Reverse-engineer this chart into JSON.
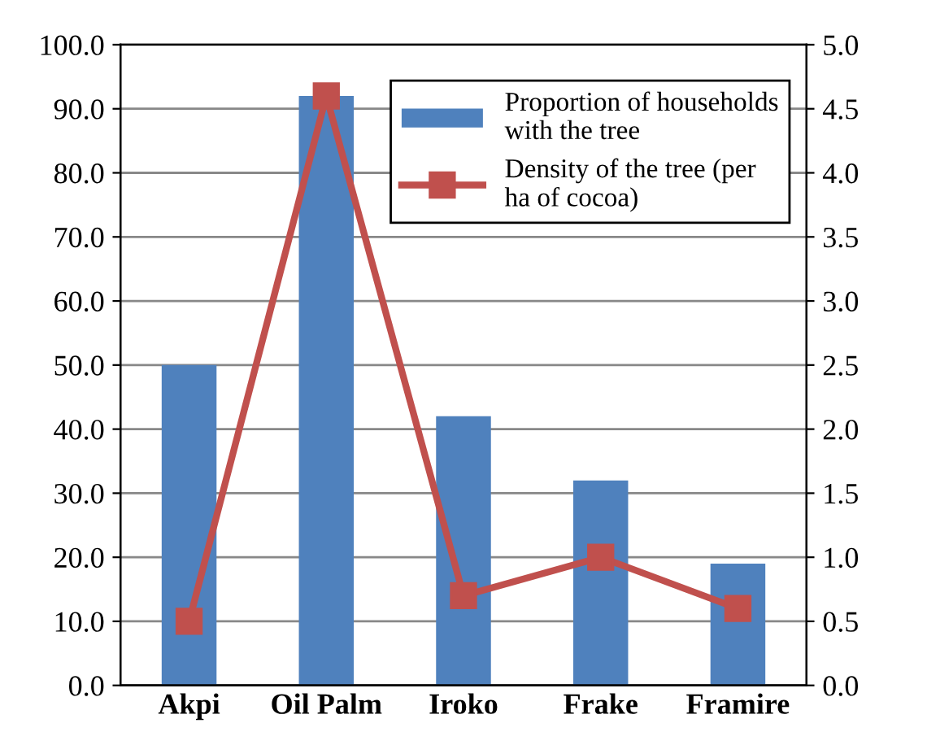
{
  "chart_data": {
    "type": "bar",
    "categories": [
      "Akpi",
      "Oil Palm",
      "Iroko",
      "Frake",
      "Framire"
    ],
    "series": [
      {
        "name": "Proportion of households with the tree",
        "color": "#4f81bd",
        "values": [
          50,
          92,
          42,
          32,
          19
        ]
      },
      {
        "name": "Density of the tree (per ha of cocoa)",
        "type": "line",
        "axis": "y2",
        "color": "#c0504d",
        "marker": "square",
        "values": [
          0.5,
          4.6,
          0.7,
          1.0,
          0.6
        ]
      }
    ],
    "ylim": [
      0,
      100
    ],
    "yticks": [
      {
        "value": 0,
        "label": "0.0"
      },
      {
        "value": 10,
        "label": "10.0"
      },
      {
        "value": 20,
        "label": "20.0"
      },
      {
        "value": 30,
        "label": "30.0"
      },
      {
        "value": 40,
        "label": "40.0"
      },
      {
        "value": 50,
        "label": "50.0"
      },
      {
        "value": 60,
        "label": "60.0"
      },
      {
        "value": 70,
        "label": "70.0"
      },
      {
        "value": 80,
        "label": "80.0"
      },
      {
        "value": 90,
        "label": "90.0"
      },
      {
        "value": 100,
        "label": "100.0"
      }
    ],
    "y2lim": [
      0,
      5
    ],
    "y2ticks": [
      {
        "value": 0,
        "label": "0.0"
      },
      {
        "value": 0.5,
        "label": "0.5"
      },
      {
        "value": 1,
        "label": "1.0"
      },
      {
        "value": 1.5,
        "label": "1.5"
      },
      {
        "value": 2,
        "label": "2.0"
      },
      {
        "value": 2.5,
        "label": "2.5"
      },
      {
        "value": 3,
        "label": "3.0"
      },
      {
        "value": 3.5,
        "label": "3.5"
      },
      {
        "value": 4,
        "label": "4.0"
      },
      {
        "value": 4.5,
        "label": "4.5"
      },
      {
        "value": 5,
        "label": "5.0"
      }
    ],
    "grid": "y",
    "legend": "top right"
  }
}
